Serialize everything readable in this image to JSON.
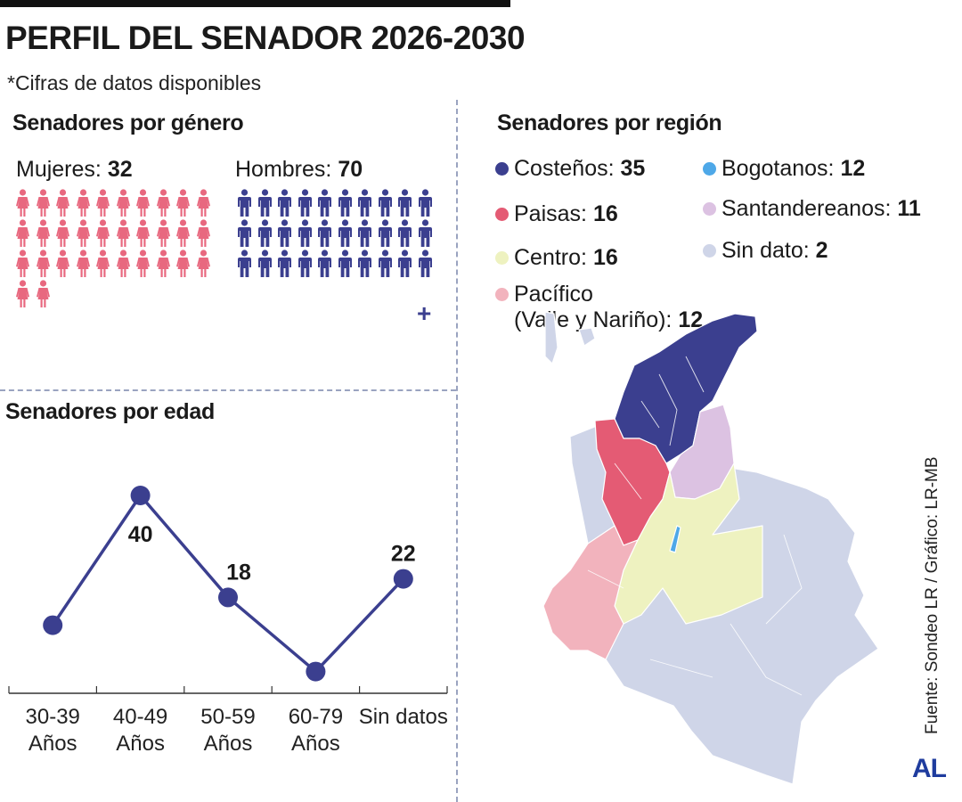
{
  "title": "PERFIL DEL SENADOR 2026-2030",
  "subtitle": "*Cifras de datos disponibles",
  "gender": {
    "heading": "Senadores por género",
    "women_label": "Mujeres: ",
    "women_value": "32",
    "men_label": "Hombres: ",
    "men_value": "70",
    "women_color": "#e8687f",
    "men_color": "#3b3f8f",
    "plus_mark": "+"
  },
  "age": {
    "heading": "Senadores por edad"
  },
  "region": {
    "heading": "Senadores por región",
    "items": [
      {
        "label": "Costeños: ",
        "value": "35",
        "color": "#3b3f8f"
      },
      {
        "label": "Paisas: ",
        "value": "16",
        "color": "#e45b74"
      },
      {
        "label": "Centro: ",
        "value": "16",
        "color": "#eef2c0"
      },
      {
        "label_line1": "Pacífico",
        "label": "(Valle y Nariño): ",
        "value": "12",
        "color": "#f2b3bd"
      },
      {
        "label": "Bogotanos: ",
        "value": "12",
        "color": "#4ea8e8"
      },
      {
        "label": "Santandereanos: ",
        "value": "11",
        "color": "#dcc2e2"
      },
      {
        "label": "Sin dato: ",
        "value": "2",
        "color": "#cfd5e8"
      }
    ]
  },
  "source": "Fuente: Sondeo LR / Gráfico: LR-MB",
  "logo": "AL",
  "chart_data": [
    {
      "type": "pictogram",
      "title": "Senadores por género",
      "categories": [
        "Mujeres",
        "Hombres"
      ],
      "values": [
        32,
        70
      ]
    },
    {
      "type": "line",
      "title": "Senadores por edad",
      "categories": [
        "30-39 Años",
        "40-49 Años",
        "50-59 Años",
        "60-79 Años",
        "Sin datos"
      ],
      "tick_lines": [
        [
          "30-39",
          "Años"
        ],
        [
          "40-49",
          "Años"
        ],
        [
          "50-59",
          "Años"
        ],
        [
          "60-79",
          "Años"
        ],
        [
          "Sin datos"
        ]
      ],
      "values": [
        12,
        40,
        18,
        2,
        22
      ],
      "data_labels": [
        "",
        "40",
        "18",
        "",
        "22"
      ],
      "ylim": [
        0,
        45
      ],
      "line_color": "#3b3f8f",
      "grid": false
    },
    {
      "type": "map",
      "title": "Senadores por región",
      "categories": [
        "Costeños",
        "Paisas",
        "Centro",
        "Pacífico (Valle y Nariño)",
        "Bogotanos",
        "Santandereanos",
        "Sin dato"
      ],
      "values": [
        35,
        16,
        16,
        12,
        12,
        11,
        2
      ]
    }
  ]
}
